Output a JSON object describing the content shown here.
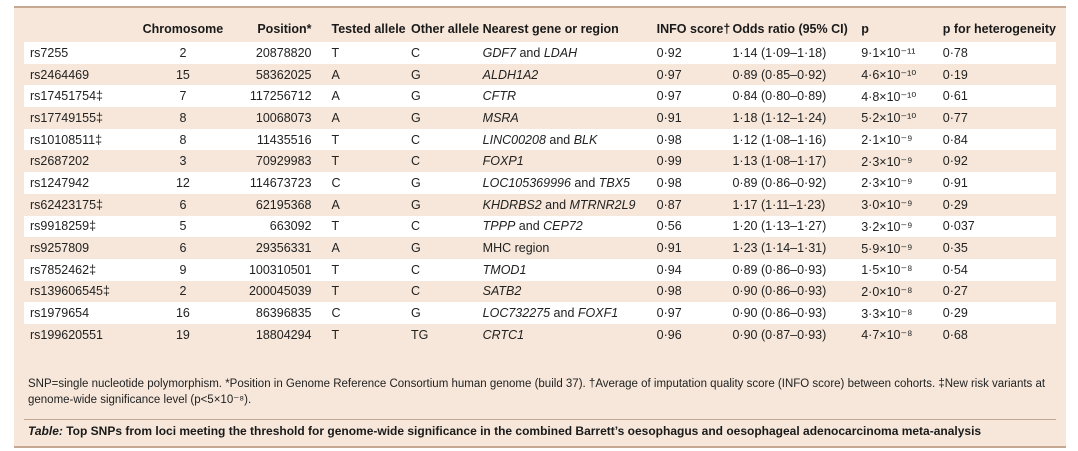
{
  "headers": [
    "",
    "Chromosome",
    "Position*",
    "Tested allele",
    "Other allele",
    "Nearest gene or region",
    "INFO score†",
    "Odds ratio (95% CI)",
    "p",
    "p for heterogeneity"
  ],
  "rows": [
    {
      "snp": "rs7255",
      "chr": "2",
      "pos": "20878820",
      "tested": "T",
      "other": "C",
      "gene": "GDF7 and LDAH",
      "info": "0·92",
      "or": "1·14 (1·09–1·18)",
      "p": "9·1×10⁻¹¹",
      "het": "0·78"
    },
    {
      "snp": "rs2464469",
      "chr": "15",
      "pos": "58362025",
      "tested": "A",
      "other": "G",
      "gene": "ALDH1A2",
      "info": "0·97",
      "or": "0·89 (0·85–0·92)",
      "p": "4·6×10⁻¹⁰",
      "het": "0·19"
    },
    {
      "snp": "rs17451754‡",
      "chr": "7",
      "pos": "117256712",
      "tested": "A",
      "other": "G",
      "gene": "CFTR",
      "info": "0·97",
      "or": "0·84 (0·80–0·89)",
      "p": "4·8×10⁻¹⁰",
      "het": "0·61"
    },
    {
      "snp": "rs17749155‡",
      "chr": "8",
      "pos": "10068073",
      "tested": "A",
      "other": "G",
      "gene": "MSRA",
      "info": "0·91",
      "or": "1·18 (1·12–1·24)",
      "p": "5·2×10⁻¹⁰",
      "het": "0·77"
    },
    {
      "snp": "rs10108511‡",
      "chr": "8",
      "pos": "11435516",
      "tested": "T",
      "other": "C",
      "gene": "LINC00208 and BLK",
      "info": "0·98",
      "or": "1·12 (1·08–1·16)",
      "p": "2·1×10⁻⁹",
      "het": "0·84"
    },
    {
      "snp": "rs2687202",
      "chr": "3",
      "pos": "70929983",
      "tested": "T",
      "other": "C",
      "gene": "FOXP1",
      "info": "0·99",
      "or": "1·13 (1·08–1·17)",
      "p": "2·3×10⁻⁹",
      "het": "0·92"
    },
    {
      "snp": "rs1247942",
      "chr": "12",
      "pos": "114673723",
      "tested": "C",
      "other": "G",
      "gene": "LOC105369996 and TBX5",
      "info": "0·98",
      "or": "0·89 (0·86–0·92)",
      "p": "2·3×10⁻⁹",
      "het": "0·91"
    },
    {
      "snp": "rs62423175‡",
      "chr": "6",
      "pos": "62195368",
      "tested": "A",
      "other": "G",
      "gene": "KHDRBS2 and MTRNR2L9",
      "info": "0·87",
      "or": "1·17 (1·11–1·23)",
      "p": "3·0×10⁻⁹",
      "het": "0·29"
    },
    {
      "snp": "rs9918259‡",
      "chr": "5",
      "pos": "663092",
      "tested": "T",
      "other": "C",
      "gene": "TPPP and CEP72",
      "info": "0·56",
      "or": "1·20 (1·13–1·27)",
      "p": "3·2×10⁻⁹",
      "het": "0·037"
    },
    {
      "snp": "rs9257809",
      "chr": "6",
      "pos": "29356331",
      "tested": "A",
      "other": "G",
      "gene": "MHC region",
      "info": "0·91",
      "or": "1·23 (1·14–1·31)",
      "p": "5·9×10⁻⁹",
      "het": "0·35"
    },
    {
      "snp": "rs7852462‡",
      "chr": "9",
      "pos": "100310501",
      "tested": "T",
      "other": "C",
      "gene": "TMOD1",
      "info": "0·94",
      "or": "0·89 (0·86–0·93)",
      "p": "1·5×10⁻⁸",
      "het": "0·54"
    },
    {
      "snp": "rs139606545‡",
      "chr": "2",
      "pos": "200045039",
      "tested": "T",
      "other": "C",
      "gene": "SATB2",
      "info": "0·98",
      "or": "0·90 (0·86–0·93)",
      "p": "2·0×10⁻⁸",
      "het": "0·27"
    },
    {
      "snp": "rs1979654",
      "chr": "16",
      "pos": "86396835",
      "tested": "C",
      "other": "G",
      "gene": "LOC732275 and FOXF1",
      "info": "0·97",
      "or": "0·90 (0·86–0·93)",
      "p": "3·3×10⁻⁸",
      "het": "0·29"
    },
    {
      "snp": "rs199620551",
      "chr": "19",
      "pos": "18804294",
      "tested": "T",
      "other": "TG",
      "gene": "CRTC1",
      "info": "0·96",
      "or": "0·90 (0·87–0·93)",
      "p": "4·7×10⁻⁸",
      "het": "0·68"
    }
  ],
  "footnote": "SNP=single nucleotide polymorphism. *Position in Genome Reference Consortium human genome (build 37). †Average of imputation quality score (INFO score) between cohorts. ‡New risk variants at genome-wide significance level (p<5×10⁻⁸).",
  "caption_label": "Table:",
  "caption_text": " Top SNPs from loci meeting the threshold for genome-wide significance in the combined Barrett’s oesophagus and oesophageal adenocarcinoma meta-analysis"
}
